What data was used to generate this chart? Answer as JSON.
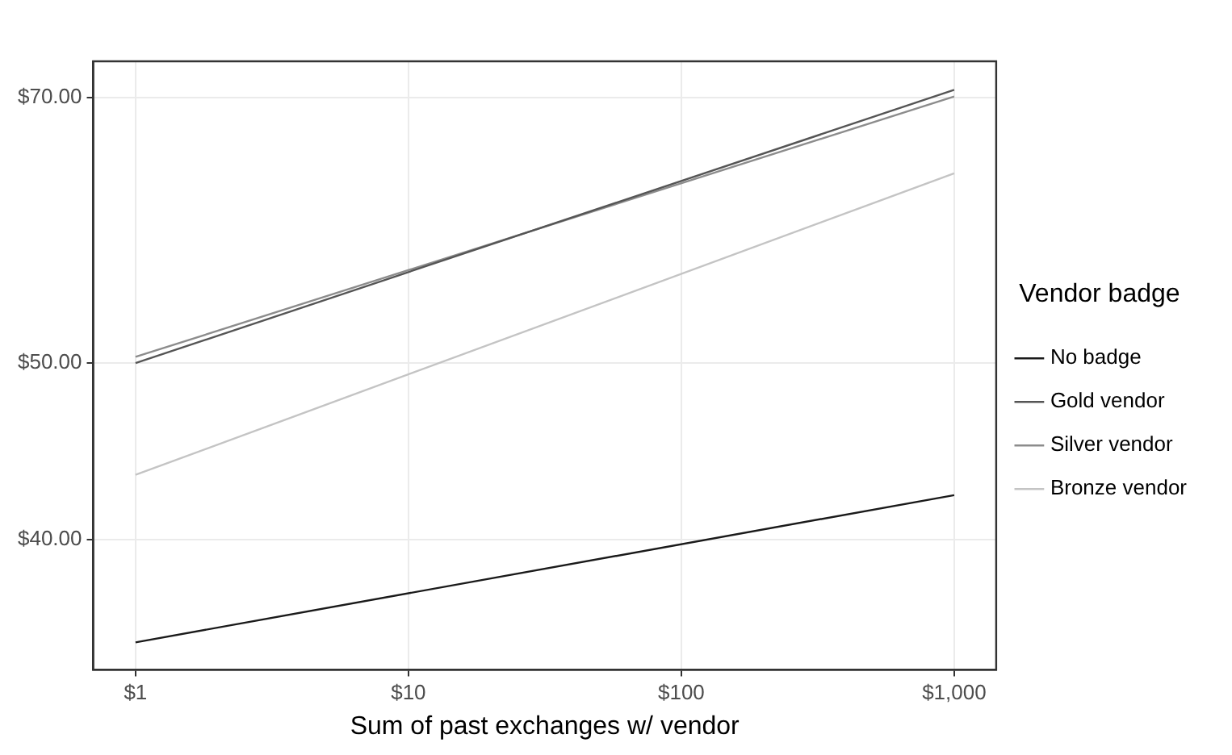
{
  "chart_data": {
    "type": "line",
    "xlabel": "Sum of past exchanges w/ vendor",
    "legend_title": "Vendor badge",
    "x": [
      1,
      1000
    ],
    "log": "xy",
    "grid": true,
    "legend": "right",
    "marker": "none",
    "line_style": "solid",
    "xlim": [
      0.71,
      1425
    ],
    "xticks": [
      {
        "value": 1,
        "label": "$1"
      },
      {
        "value": 10,
        "label": "$10"
      },
      {
        "value": 100,
        "label": "$100"
      },
      {
        "value": 1000,
        "label": "$1,000"
      }
    ],
    "ylim": [
      33.9,
      73.3
    ],
    "yticks": [
      {
        "value": 40,
        "label": "$40.00"
      },
      {
        "value": 50,
        "label": "$50.00"
      },
      {
        "value": 70,
        "label": "$70.00"
      }
    ],
    "series": [
      {
        "name": "No badge",
        "color": "#1a1a1a",
        "values": [
          35.1,
          42.3
        ]
      },
      {
        "name": "Gold vendor",
        "color": "#555555",
        "values": [
          50.0,
          70.7
        ]
      },
      {
        "name": "Silver vendor",
        "color": "#8c8c8c",
        "values": [
          50.4,
          70.1
        ]
      },
      {
        "name": "Bronze vendor",
        "color": "#c4c4c4",
        "values": [
          43.4,
          63.6
        ]
      }
    ]
  }
}
